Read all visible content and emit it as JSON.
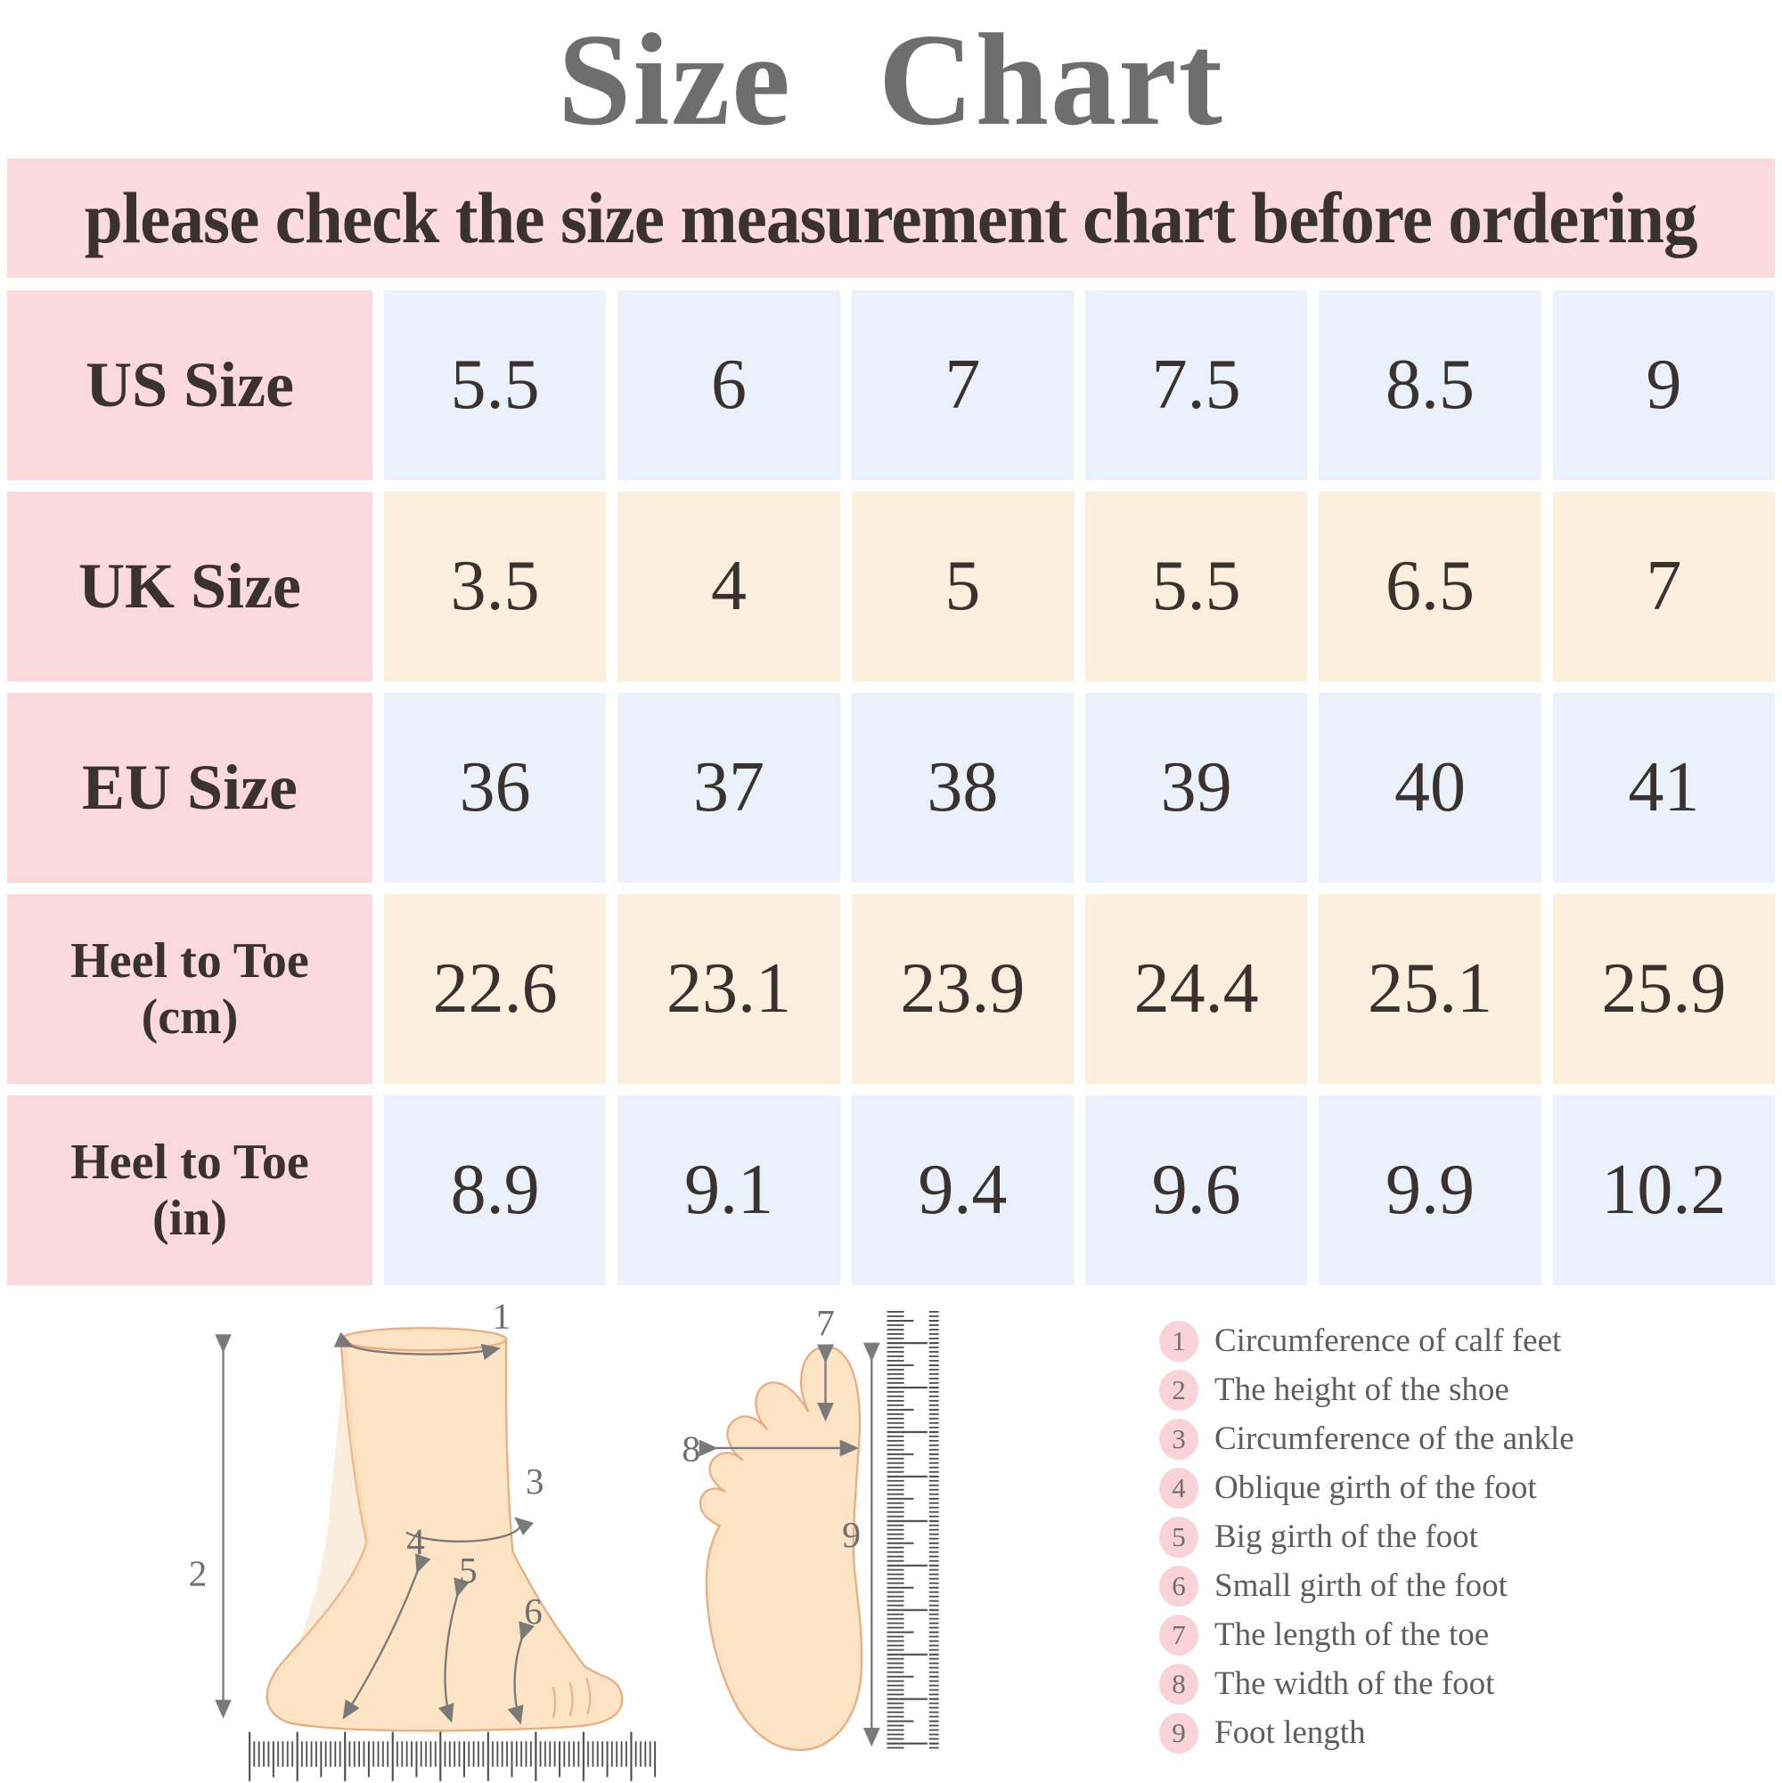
{
  "title": "Size Chart",
  "banner": "please check the size measurement chart before ordering",
  "table": {
    "rows": [
      {
        "key": "us-size",
        "header": "US Size",
        "tone": "blue",
        "values": [
          "5.5",
          "6",
          "7",
          "7.5",
          "8.5",
          "9"
        ]
      },
      {
        "key": "uk-size",
        "header": "UK Size",
        "tone": "peach",
        "values": [
          "3.5",
          "4",
          "5",
          "5.5",
          "6.5",
          "7"
        ]
      },
      {
        "key": "eu-size",
        "header": "EU Size",
        "tone": "blue",
        "values": [
          "36",
          "37",
          "38",
          "39",
          "40",
          "41"
        ]
      },
      {
        "key": "heel-to-toe-cm",
        "header": "Heel to Toe\n(cm)",
        "tone": "peach",
        "values": [
          "22.6",
          "23.1",
          "23.9",
          "24.4",
          "25.1",
          "25.9"
        ]
      },
      {
        "key": "heel-to-toe-in",
        "header": "Heel to Toe\n(in)",
        "tone": "blue",
        "values": [
          "8.9",
          "9.1",
          "9.4",
          "9.6",
          "9.9",
          "10.2"
        ]
      }
    ]
  },
  "diagram": {
    "side_markers": [
      "1",
      "2",
      "3",
      "4",
      "5",
      "6"
    ],
    "sole_markers": [
      "7",
      "8",
      "9"
    ]
  },
  "legend": [
    {
      "num": "1",
      "label": "Circumference of calf feet"
    },
    {
      "num": "2",
      "label": "The height of the shoe"
    },
    {
      "num": "3",
      "label": "Circumference of the ankle"
    },
    {
      "num": "4",
      "label": "Oblique girth of the foot"
    },
    {
      "num": "5",
      "label": "Big girth of the foot"
    },
    {
      "num": "6",
      "label": "Small girth of the foot"
    },
    {
      "num": "7",
      "label": "The length of the toe"
    },
    {
      "num": "8",
      "label": "The width of the foot"
    },
    {
      "num": "9",
      "label": "Foot length"
    }
  ],
  "colors": {
    "title_gray": "#6e6e6e",
    "text_dark": "#3a322f",
    "banner_pink": "#fcdbde",
    "header_pink": "#fbd9dd",
    "cell_blue": "#eaf1fa",
    "cell_peach": "#fdefdd",
    "badge_pink": "#f9d3d8",
    "legend_text": "#5d5d5d",
    "line_gray": "#6f6f6f",
    "skin": "#fde4c4",
    "skin_outline": "#eaae82",
    "ruler_gray": "#4c4c4c"
  },
  "chart_data": {
    "type": "table",
    "title": "Size Chart",
    "note": "please check the size measurement chart before ordering",
    "columns": [
      "US Size",
      "UK Size",
      "EU Size",
      "Heel to Toe (cm)",
      "Heel to Toe (in)"
    ],
    "rows": [
      [
        5.5,
        3.5,
        36,
        22.6,
        8.9
      ],
      [
        6,
        4,
        37,
        23.1,
        9.1
      ],
      [
        7,
        5,
        38,
        23.9,
        9.4
      ],
      [
        7.5,
        5.5,
        39,
        24.4,
        9.6
      ],
      [
        8.5,
        6.5,
        40,
        25.1,
        9.9
      ],
      [
        9,
        7,
        41,
        25.9,
        10.2
      ]
    ],
    "measurement_legend": [
      "Circumference of calf feet",
      "The height of the shoe",
      "Circumference of the ankle",
      "Oblique girth of the foot",
      "Big girth of the foot",
      "Small girth of the foot",
      "The length of the toe",
      "The width of the foot",
      "Foot length"
    ]
  }
}
